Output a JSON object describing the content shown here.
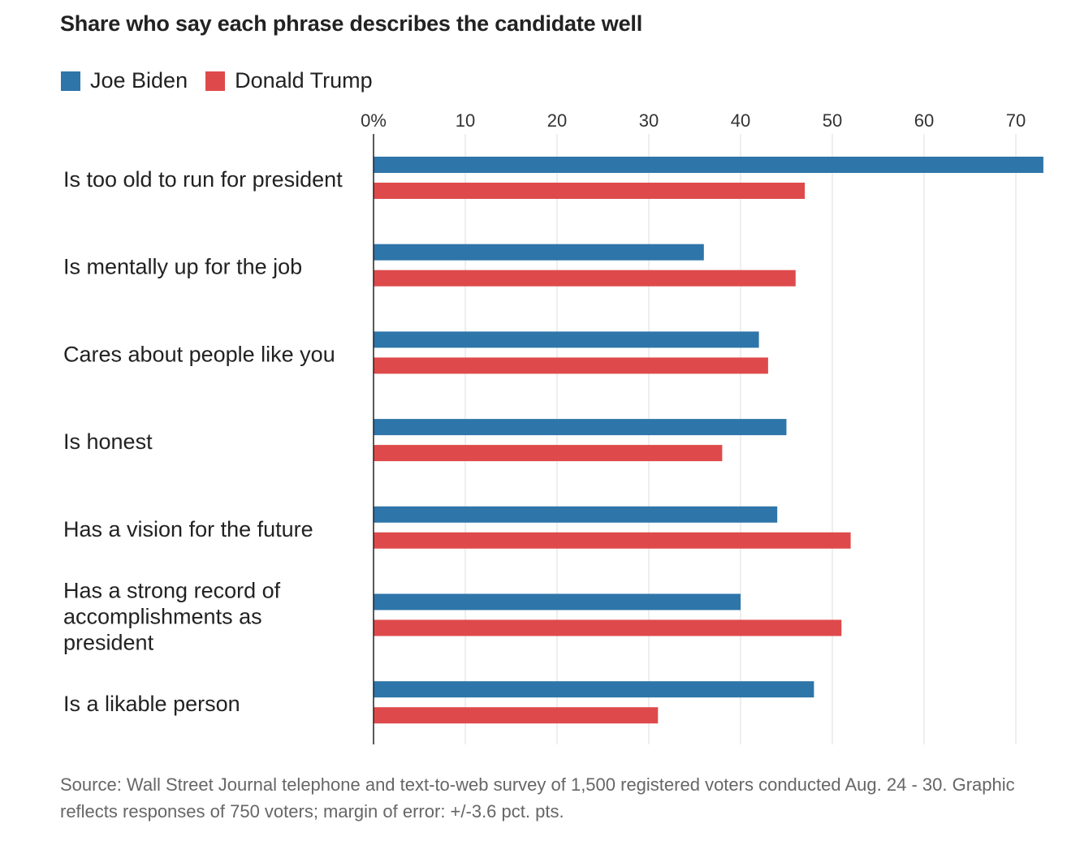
{
  "title": "Share who say each phrase describes the candidate well",
  "source": "Source: Wall Street Journal telephone and text-to-web survey of 1,500 registered voters conducted Aug. 24 - 30. Graphic reflects responses of 750 voters; margin of error: +/-3.6 pct. pts.",
  "colors": {
    "biden": "#2e75a9",
    "trump": "#de4a4b",
    "grid": "#dddddd",
    "axis": "#222222"
  },
  "chart_data": {
    "type": "bar",
    "orientation": "horizontal",
    "title": "Share who say each phrase describes the candidate well",
    "categories": [
      [
        "Is too old to run for president"
      ],
      [
        "Is mentally up for the job"
      ],
      [
        "Cares about people like you"
      ],
      [
        "Is honest"
      ],
      [
        "Has a vision for the future"
      ],
      [
        "Has a strong record of",
        "accomplishments as",
        "president"
      ],
      [
        "Is a likable person"
      ]
    ],
    "series": [
      {
        "name": "Joe Biden",
        "color": "#2e75a9",
        "values": [
          73,
          36,
          42,
          45,
          44,
          40,
          48
        ]
      },
      {
        "name": "Donald Trump",
        "color": "#de4a4b",
        "values": [
          47,
          46,
          43,
          38,
          52,
          51,
          31
        ]
      }
    ],
    "xticks": [
      "0%",
      "10",
      "20",
      "30",
      "40",
      "50",
      "60",
      "70"
    ],
    "xtick_values": [
      0,
      10,
      20,
      30,
      40,
      50,
      60,
      70
    ],
    "xlim": [
      0,
      73
    ],
    "grid": true,
    "legend": "top-left"
  }
}
